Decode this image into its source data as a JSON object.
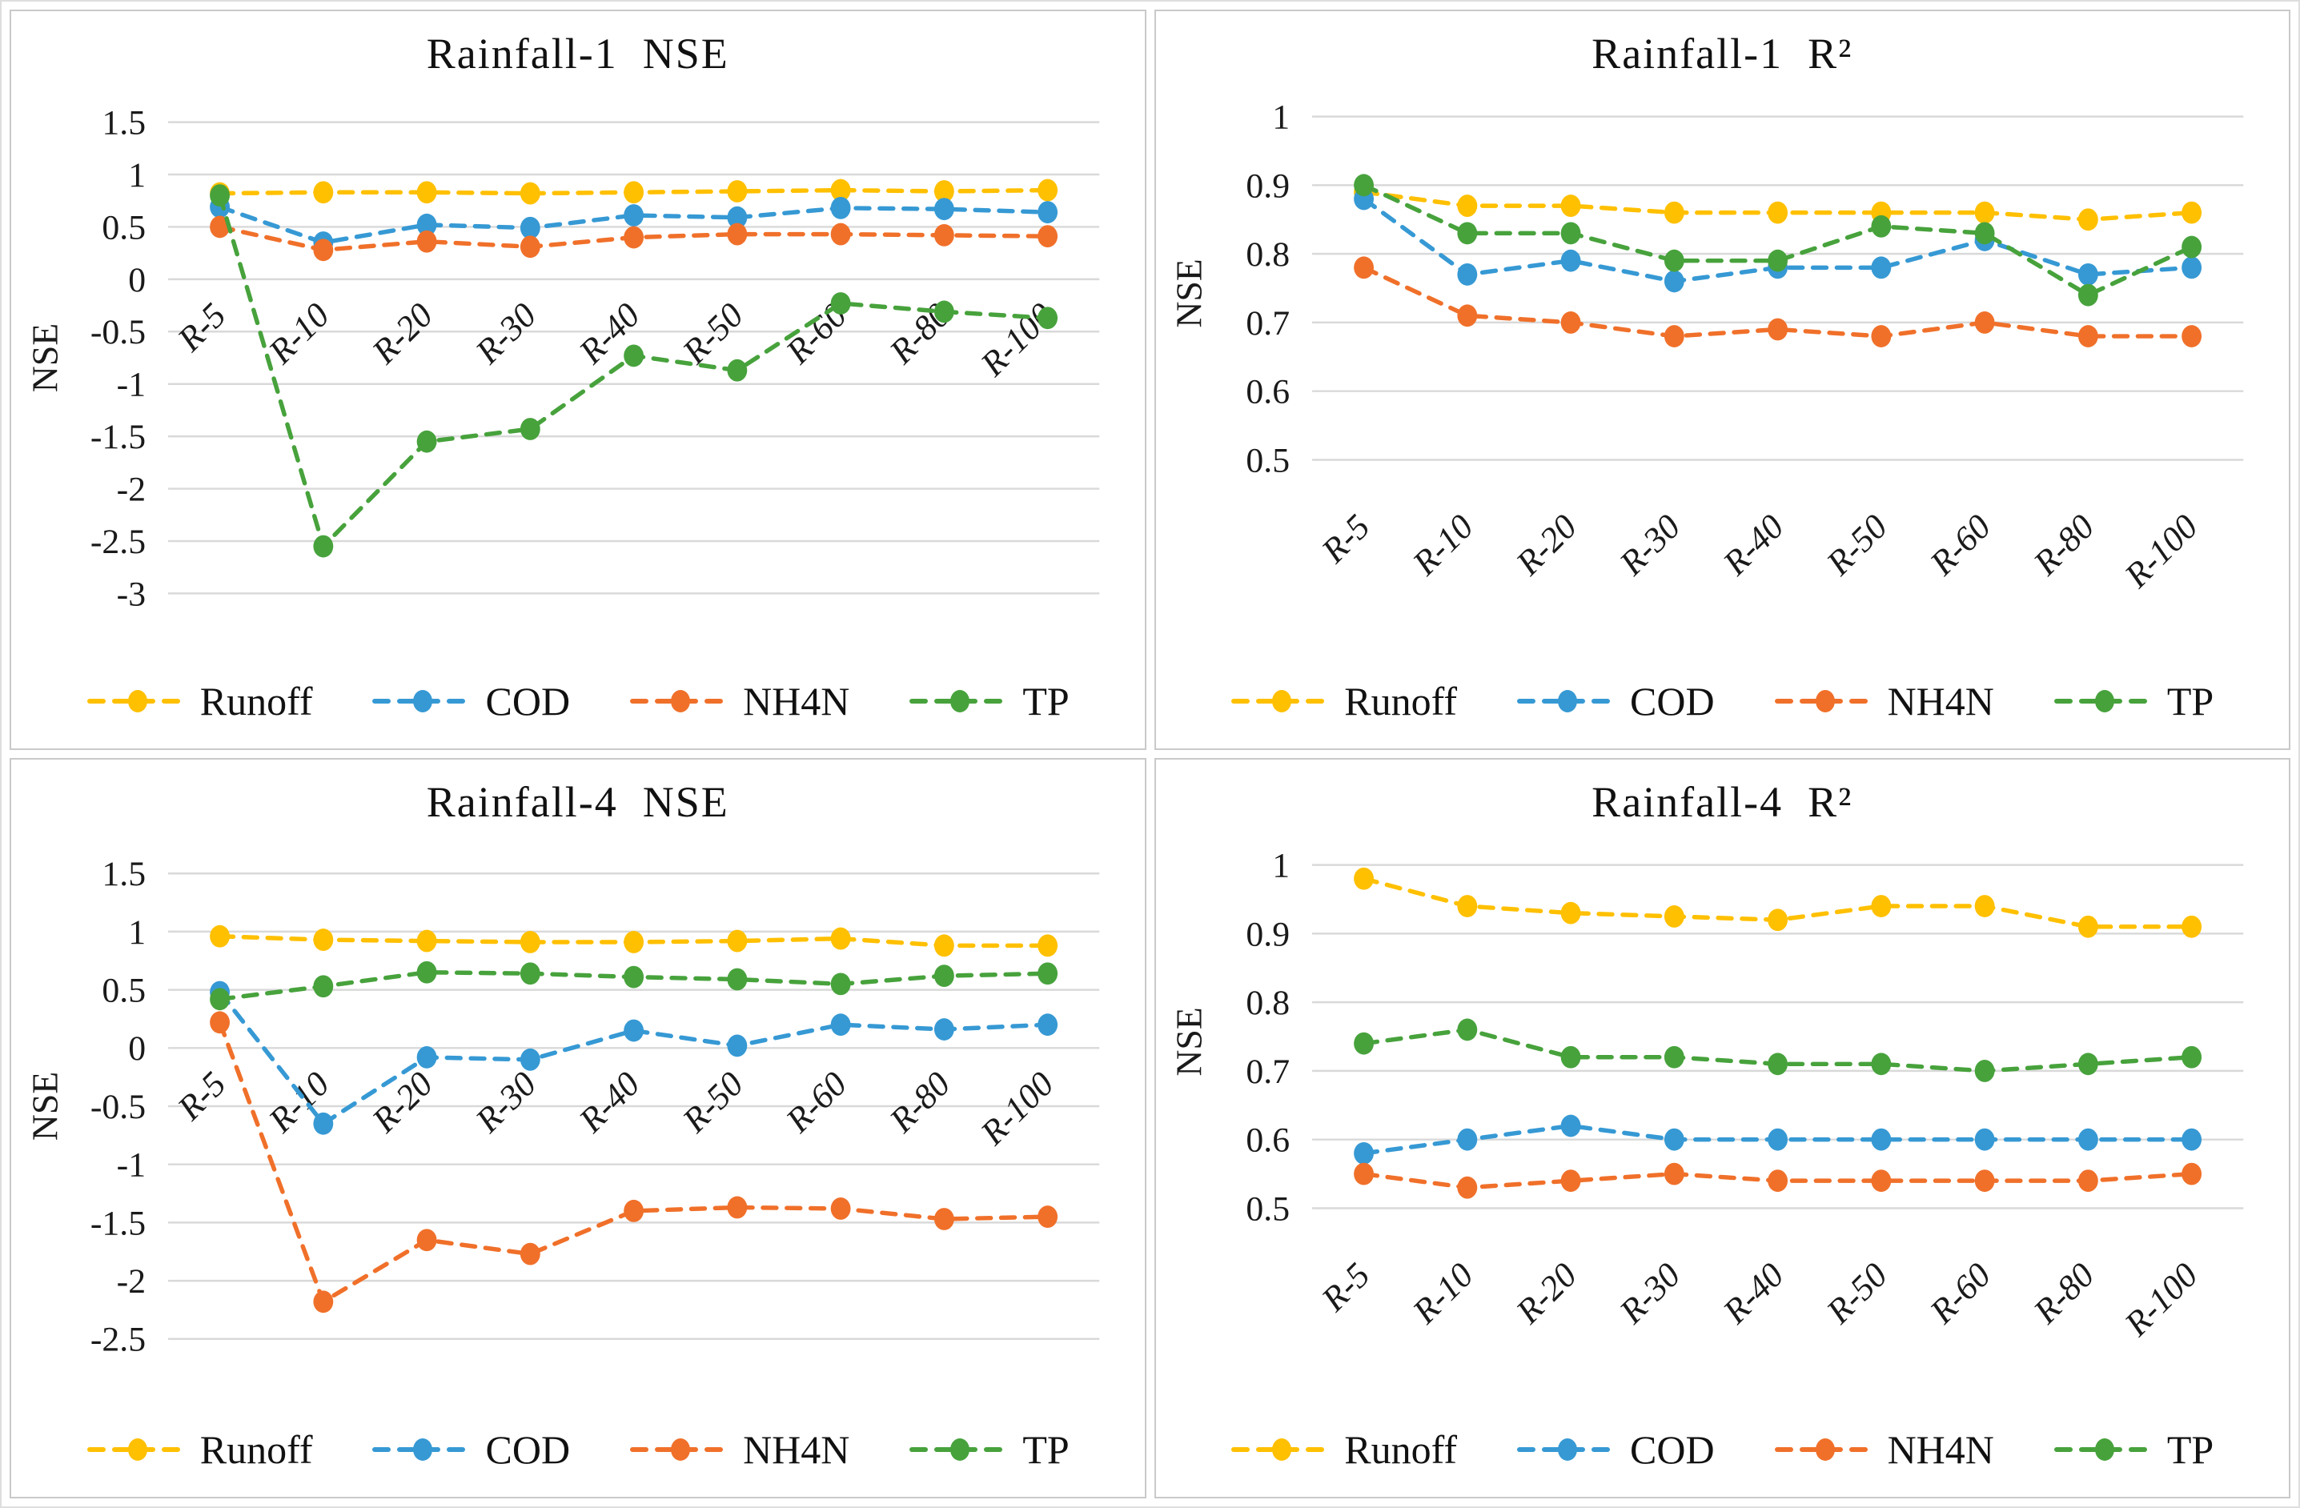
{
  "figure": {
    "background": "#ffffff",
    "panel_border_color": "#c9c9c9",
    "grid_color": "#d9d9d9",
    "text_color": "#1a1a1a"
  },
  "chart_data": [
    {
      "id": "rainfall-1-nse",
      "type": "line",
      "title": "Rainfall-1  NSE",
      "ylabel": "NSE",
      "categories": [
        "R-5",
        "R-10",
        "R-20",
        "R-30",
        "R-40",
        "R-50",
        "R-60",
        "R-80",
        "R-100"
      ],
      "yticks": [
        1.5,
        1,
        0.5,
        0,
        -0.5,
        -1,
        -1.5,
        -2,
        -2.5,
        -3
      ],
      "ylim": [
        -3.25,
        1.75
      ],
      "grid": true,
      "legend_position": "bottom",
      "x_label_anchor": "zero",
      "line_style": "dashed",
      "marker": "circle",
      "series": [
        {
          "name": "Runoff",
          "color": "#FFC000",
          "values": [
            0.82,
            0.83,
            0.83,
            0.82,
            0.83,
            0.84,
            0.85,
            0.84,
            0.85
          ]
        },
        {
          "name": "COD",
          "color": "#3699D4",
          "values": [
            0.69,
            0.35,
            0.52,
            0.49,
            0.61,
            0.59,
            0.68,
            0.67,
            0.64
          ]
        },
        {
          "name": "NH4N",
          "color": "#F0702A",
          "values": [
            0.5,
            0.28,
            0.36,
            0.31,
            0.4,
            0.43,
            0.43,
            0.42,
            0.41
          ]
        },
        {
          "name": "TP",
          "color": "#47A23C",
          "values": [
            0.8,
            -2.55,
            -1.55,
            -1.43,
            -0.73,
            -0.87,
            -0.23,
            -0.31,
            -0.37
          ]
        }
      ]
    },
    {
      "id": "rainfall-1-r2",
      "type": "line",
      "title": "Rainfall-1  R²",
      "ylabel": "NSE",
      "categories": [
        "R-5",
        "R-10",
        "R-20",
        "R-30",
        "R-40",
        "R-50",
        "R-60",
        "R-80",
        "R-100"
      ],
      "yticks": [
        1,
        0.9,
        0.8,
        0.7,
        0.6,
        0.5
      ],
      "ylim": [
        0.455,
        1.03
      ],
      "grid": true,
      "legend_position": "bottom",
      "x_label_anchor": "bottom",
      "line_style": "dashed",
      "marker": "circle",
      "series": [
        {
          "name": "Runoff",
          "color": "#FFC000",
          "values": [
            0.89,
            0.87,
            0.87,
            0.86,
            0.86,
            0.86,
            0.86,
            0.85,
            0.86
          ]
        },
        {
          "name": "COD",
          "color": "#3699D4",
          "values": [
            0.88,
            0.77,
            0.79,
            0.76,
            0.78,
            0.78,
            0.82,
            0.77,
            0.78
          ]
        },
        {
          "name": "NH4N",
          "color": "#F0702A",
          "values": [
            0.78,
            0.71,
            0.7,
            0.68,
            0.69,
            0.68,
            0.7,
            0.68,
            0.68
          ]
        },
        {
          "name": "TP",
          "color": "#47A23C",
          "values": [
            0.9,
            0.83,
            0.83,
            0.79,
            0.79,
            0.84,
            0.83,
            0.74,
            0.81
          ]
        }
      ]
    },
    {
      "id": "rainfall-4-nse",
      "type": "line",
      "title": "Rainfall-4  NSE",
      "ylabel": "NSE",
      "categories": [
        "R-5",
        "R-10",
        "R-20",
        "R-30",
        "R-40",
        "R-50",
        "R-60",
        "R-80",
        "R-100"
      ],
      "yticks": [
        1.5,
        1,
        0.5,
        0,
        -0.5,
        -1,
        -1.5,
        -2,
        -2.5
      ],
      "ylim": [
        -2.75,
        1.75
      ],
      "grid": true,
      "legend_position": "bottom",
      "x_label_anchor": "zero",
      "line_style": "dashed",
      "marker": "circle",
      "series": [
        {
          "name": "Runoff",
          "color": "#FFC000",
          "values": [
            0.96,
            0.93,
            0.92,
            0.91,
            0.91,
            0.92,
            0.94,
            0.88,
            0.88
          ]
        },
        {
          "name": "COD",
          "color": "#3699D4",
          "values": [
            0.48,
            -0.65,
            -0.08,
            -0.1,
            0.15,
            0.02,
            0.2,
            0.16,
            0.2
          ]
        },
        {
          "name": "NH4N",
          "color": "#F0702A",
          "values": [
            0.22,
            -2.18,
            -1.65,
            -1.77,
            -1.4,
            -1.37,
            -1.38,
            -1.47,
            -1.45
          ]
        },
        {
          "name": "TP",
          "color": "#47A23C",
          "values": [
            0.42,
            0.53,
            0.65,
            0.64,
            0.61,
            0.59,
            0.55,
            0.62,
            0.64
          ]
        }
      ]
    },
    {
      "id": "rainfall-4-r2",
      "type": "line",
      "title": "Rainfall-4  R²",
      "ylabel": "NSE",
      "categories": [
        "R-5",
        "R-10",
        "R-20",
        "R-30",
        "R-40",
        "R-50",
        "R-60",
        "R-80",
        "R-100"
      ],
      "yticks": [
        1,
        0.9,
        0.8,
        0.7,
        0.6,
        0.5
      ],
      "ylim": [
        0.455,
        1.03
      ],
      "grid": true,
      "legend_position": "bottom",
      "x_label_anchor": "bottom",
      "line_style": "dashed",
      "marker": "circle",
      "series": [
        {
          "name": "Runoff",
          "color": "#FFC000",
          "values": [
            0.98,
            0.94,
            0.93,
            0.925,
            0.92,
            0.94,
            0.94,
            0.91,
            0.91
          ]
        },
        {
          "name": "COD",
          "color": "#3699D4",
          "values": [
            0.58,
            0.6,
            0.62,
            0.6,
            0.6,
            0.6,
            0.6,
            0.6,
            0.6
          ]
        },
        {
          "name": "NH4N",
          "color": "#F0702A",
          "values": [
            0.55,
            0.53,
            0.54,
            0.55,
            0.54,
            0.54,
            0.54,
            0.54,
            0.55
          ]
        },
        {
          "name": "TP",
          "color": "#47A23C",
          "values": [
            0.74,
            0.76,
            0.72,
            0.72,
            0.71,
            0.71,
            0.7,
            0.71,
            0.72
          ]
        }
      ]
    }
  ]
}
